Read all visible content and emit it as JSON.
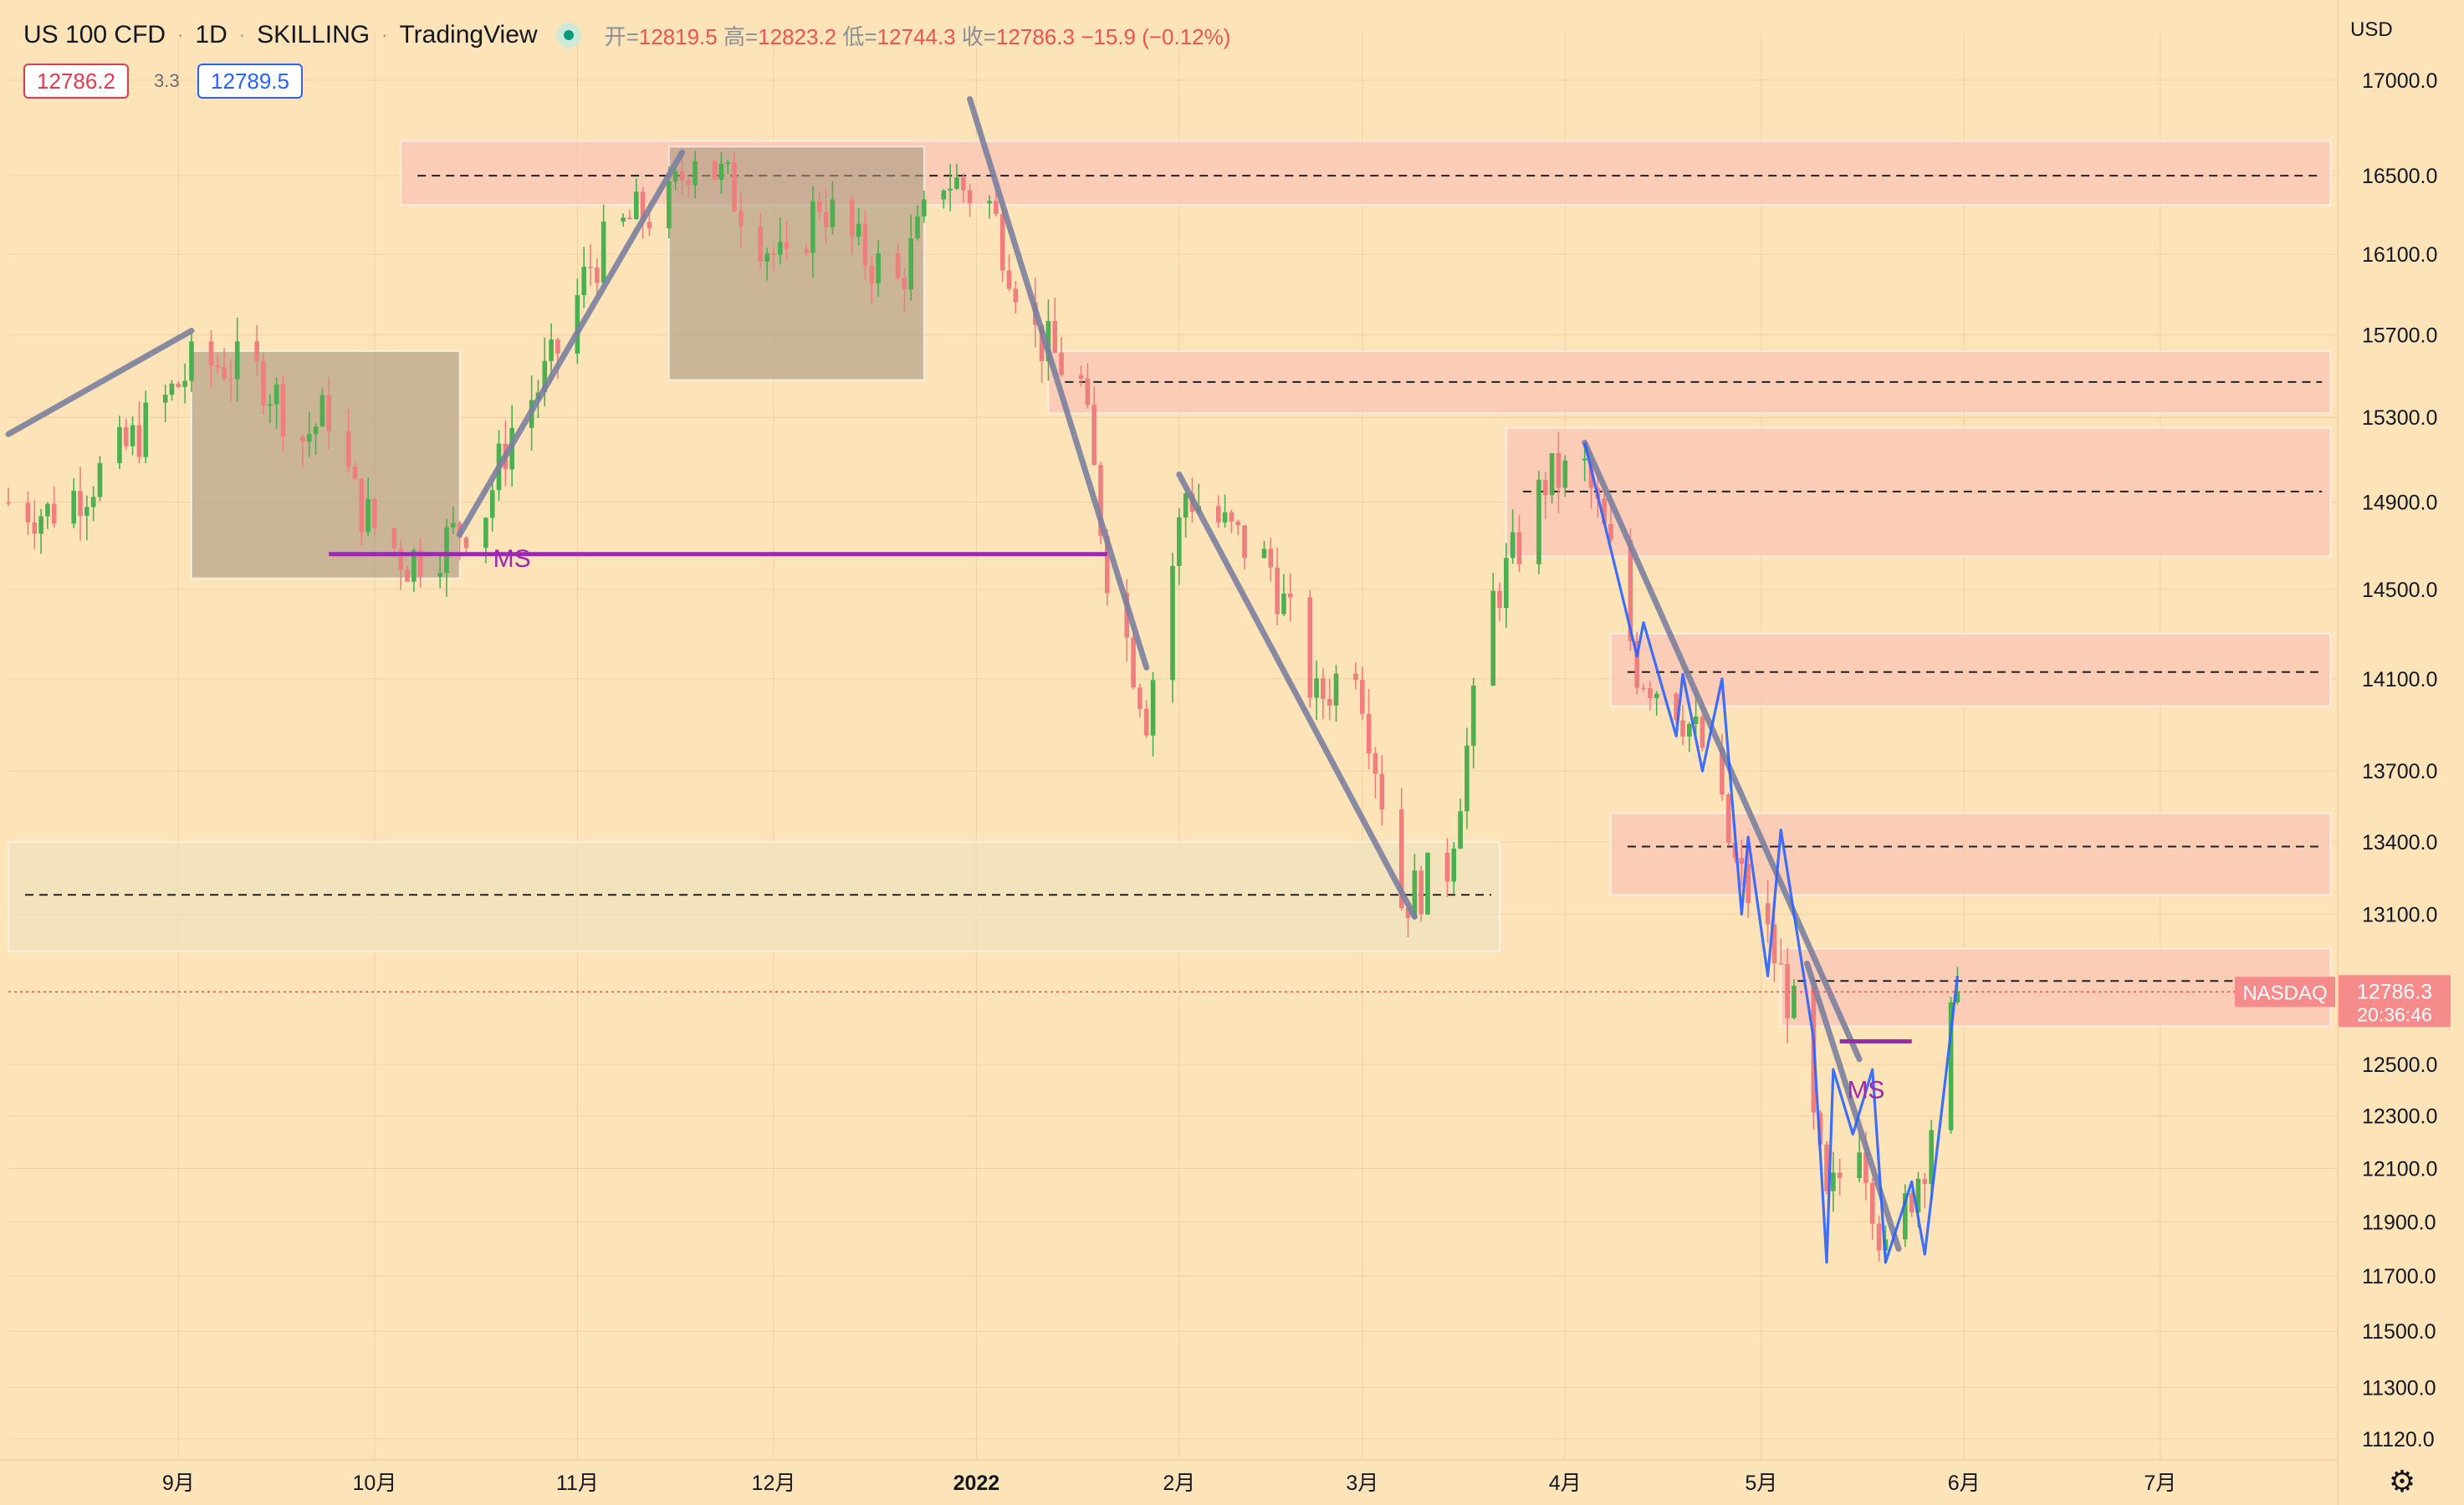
{
  "header": {
    "symbol": "US 100 CFD",
    "interval": "1D",
    "broker": "SKILLING",
    "platform": "TradingView",
    "ohlc": {
      "open_label": "开=",
      "open": "12819.5",
      "high_label": "高=",
      "high": "12823.2",
      "low_label": "低=",
      "low": "12744.3",
      "close_label": "收=",
      "close": "12786.3",
      "change": "−15.9 (−0.12%)"
    }
  },
  "quote": {
    "bid": "12786.2",
    "spread": "3.3",
    "ask": "12789.5"
  },
  "axis_unit": "USD",
  "current_price": {
    "label": "NASDAQ",
    "value": "12786.3",
    "countdown": "20:36:46"
  },
  "colors": {
    "background": "#fde3b8",
    "up": "#4caf50",
    "down": "#ef7f7f",
    "trend": "#7b7f9e",
    "ms_line": "#9c27b0",
    "blue_line": "#2962ff",
    "supply_zone": "#f9c6b6",
    "consolidation_box": "#a89880",
    "demand_zone": "#efe3bd"
  },
  "chart_data": {
    "type": "candlestick",
    "y_axis": {
      "ticks": [
        17000.0,
        16500.0,
        16100.0,
        15700.0,
        15300.0,
        14900.0,
        14500.0,
        14100.0,
        13700.0,
        13400.0,
        13100.0,
        12500.0,
        12300.0,
        12100.0,
        11900.0,
        11700.0,
        11500.0,
        11300.0,
        11120.0
      ],
      "tick_labels": [
        "17000.0",
        "16500.0",
        "16100.0",
        "15700.0",
        "15300.0",
        "14900.0",
        "14500.0",
        "14100.0",
        "13700.0",
        "13400.0",
        "13100.0",
        "12500.0",
        "12300.0",
        "12100.0",
        "11900.0",
        "11700.0",
        "11500.0",
        "11300.0",
        "11120.0"
      ],
      "range": [
        11050,
        17250
      ],
      "scale": "log"
    },
    "x_axis": {
      "ticks": [
        {
          "label": "9月",
          "date": "2021-09-01"
        },
        {
          "label": "10月",
          "date": "2021-10-01"
        },
        {
          "label": "11月",
          "date": "2021-11-01"
        },
        {
          "label": "12月",
          "date": "2021-12-01"
        },
        {
          "label": "2022",
          "date": "2022-01-01"
        },
        {
          "label": "2月",
          "date": "2022-02-01"
        },
        {
          "label": "3月",
          "date": "2022-03-01"
        },
        {
          "label": "4月",
          "date": "2022-04-01"
        },
        {
          "label": "5月",
          "date": "2022-05-01"
        },
        {
          "label": "6月",
          "date": "2022-06-01"
        },
        {
          "label": "7月",
          "date": "2022-07-01"
        }
      ],
      "range": [
        "2021-08-06",
        "2022-07-28"
      ]
    },
    "closes": [
      {
        "date": "2021-08-06",
        "close": 14900
      },
      {
        "date": "2021-08-12",
        "close": 14850
      },
      {
        "date": "2021-08-18",
        "close": 14980
      },
      {
        "date": "2021-08-24",
        "close": 15150
      },
      {
        "date": "2021-08-30",
        "close": 15380
      },
      {
        "date": "2021-09-03",
        "close": 15540
      },
      {
        "date": "2021-09-08",
        "close": 15560
      },
      {
        "date": "2021-09-14",
        "close": 15490
      },
      {
        "date": "2021-09-20",
        "close": 15200
      },
      {
        "date": "2021-09-24",
        "close": 15330
      },
      {
        "date": "2021-09-28",
        "close": 14920
      },
      {
        "date": "2021-10-01",
        "close": 14780
      },
      {
        "date": "2021-10-06",
        "close": 14630
      },
      {
        "date": "2021-10-12",
        "close": 14720
      },
      {
        "date": "2021-10-18",
        "close": 14880
      },
      {
        "date": "2021-10-22",
        "close": 15250
      },
      {
        "date": "2021-10-28",
        "close": 15540
      },
      {
        "date": "2021-11-03",
        "close": 16050
      },
      {
        "date": "2021-11-09",
        "close": 16270
      },
      {
        "date": "2021-11-15",
        "close": 16350
      },
      {
        "date": "2021-11-19",
        "close": 16650
      },
      {
        "date": "2021-11-24",
        "close": 16450
      },
      {
        "date": "2021-11-30",
        "close": 16150
      },
      {
        "date": "2021-12-03",
        "close": 16000
      },
      {
        "date": "2021-12-08",
        "close": 16380
      },
      {
        "date": "2021-12-14",
        "close": 16120
      },
      {
        "date": "2021-12-20",
        "close": 15950
      },
      {
        "date": "2021-12-27",
        "close": 16500
      },
      {
        "date": "2022-01-03",
        "close": 16350
      },
      {
        "date": "2022-01-10",
        "close": 15700
      },
      {
        "date": "2022-01-17",
        "close": 15450
      },
      {
        "date": "2022-01-21",
        "close": 14600
      },
      {
        "date": "2022-01-27",
        "close": 13950
      },
      {
        "date": "2022-02-02",
        "close": 14950
      },
      {
        "date": "2022-02-09",
        "close": 14750
      },
      {
        "date": "2022-02-15",
        "close": 14600
      },
      {
        "date": "2022-02-22",
        "close": 14000
      },
      {
        "date": "2022-02-28",
        "close": 14200
      },
      {
        "date": "2022-03-07",
        "close": 13150
      },
      {
        "date": "2022-03-14",
        "close": 13300
      },
      {
        "date": "2022-03-21",
        "close": 14450
      },
      {
        "date": "2022-03-25",
        "close": 14700
      },
      {
        "date": "2022-03-29",
        "close": 15000
      },
      {
        "date": "2022-04-04",
        "close": 15050
      },
      {
        "date": "2022-04-08",
        "close": 14650
      },
      {
        "date": "2022-04-12",
        "close": 14150
      },
      {
        "date": "2022-04-18",
        "close": 14000
      },
      {
        "date": "2022-04-22",
        "close": 13800
      },
      {
        "date": "2022-04-27",
        "close": 13300
      },
      {
        "date": "2022-05-02",
        "close": 13000
      },
      {
        "date": "2022-05-06",
        "close": 12700
      },
      {
        "date": "2022-05-11",
        "close": 11950
      },
      {
        "date": "2022-05-16",
        "close": 12250
      },
      {
        "date": "2022-05-20",
        "close": 11750
      },
      {
        "date": "2022-05-26",
        "close": 12150
      },
      {
        "date": "2022-05-31",
        "close": 12786.3
      }
    ],
    "annotations": [
      {
        "type": "text",
        "text": "MS",
        "at": {
          "date": "2021-10-22",
          "price": 14640
        }
      },
      {
        "type": "text",
        "text": "MS",
        "at": {
          "date": "2022-05-17",
          "price": 12400
        }
      }
    ]
  }
}
